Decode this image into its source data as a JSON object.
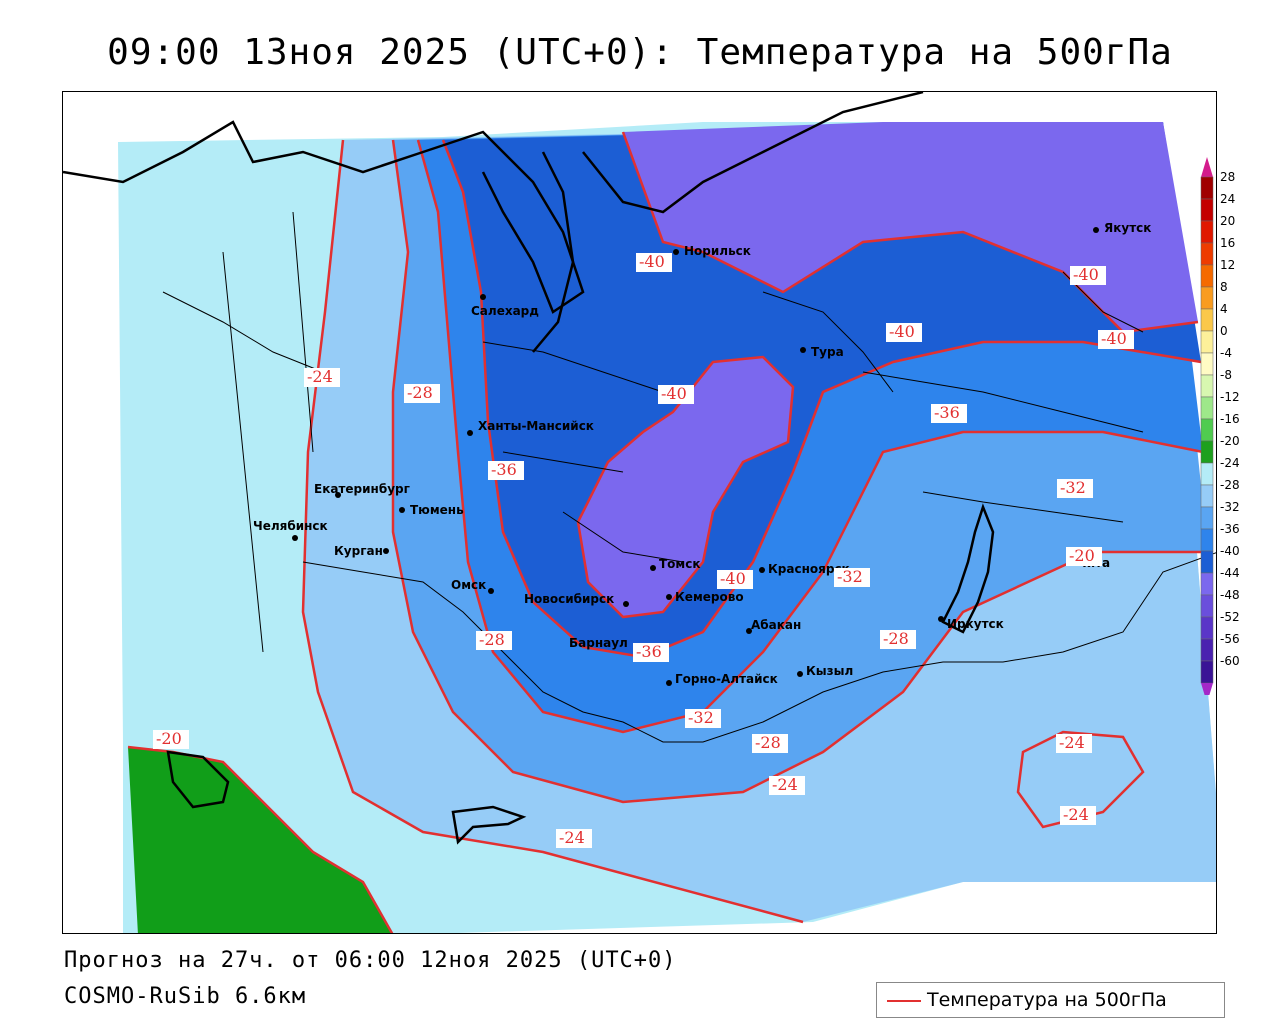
{
  "title": "09:00 13ноя 2025 (UTC+0): Температура на 500гПа",
  "footer": {
    "forecast": "Прогноз на 27ч. от 06:00 12ноя 2025 (UTC+0)",
    "model": "COSMO-RuSib 6.6км"
  },
  "legend": {
    "line_label": "Температура на 500гПа",
    "line_color": "#e23030"
  },
  "colors": {
    "band_le_minus40": "#7b68ee",
    "band_minus36_minus40": "#1c5ed4",
    "band_minus32_minus36": "#2e84ec",
    "band_minus28_minus32": "#5aa5f2",
    "band_minus24_minus28": "#96ccf7",
    "band_minus20_minus24": "#b4ecf7",
    "band_ge_minus20": "#119e19",
    "isotherm": "#e23030",
    "coast": "#000000"
  },
  "colorbar": {
    "ticks": [
      "28",
      "24",
      "20",
      "16",
      "12",
      "8",
      "4",
      "0",
      "-4",
      "-8",
      "-12",
      "-16",
      "-20",
      "-24",
      "-28",
      "-32",
      "-36",
      "-40",
      "-44",
      "-48",
      "-52",
      "-56",
      "-60"
    ],
    "colors": [
      "#a00000",
      "#c40000",
      "#e01800",
      "#ee3c00",
      "#f56a00",
      "#f99c20",
      "#fbc84a",
      "#fdf09a",
      "#fffbc4",
      "#d8f7b0",
      "#9ee88a",
      "#50cc50",
      "#1ea01e",
      "#b4ecf7",
      "#96ccf7",
      "#5aa5f2",
      "#2e84ec",
      "#1c5ed4",
      "#7b68ee",
      "#6a4fdc",
      "#5a36c8",
      "#4a22b0",
      "#3a1496"
    ],
    "top_arrow_color": "#d41c8c",
    "bottom_arrow_color": "#a428c8"
  },
  "cities": [
    {
      "name": "Норильск"
    },
    {
      "name": "Якутск"
    },
    {
      "name": "Салехард"
    },
    {
      "name": "Тура"
    },
    {
      "name": "Ханты-Мансийск"
    },
    {
      "name": "Екатеринбург"
    },
    {
      "name": "Тюмень"
    },
    {
      "name": "Челябинск"
    },
    {
      "name": "Курган"
    },
    {
      "name": "Омск"
    },
    {
      "name": "Томск"
    },
    {
      "name": "Красноярск"
    },
    {
      "name": "Новосибирск"
    },
    {
      "name": "Кемерово"
    },
    {
      "name": "Абакан"
    },
    {
      "name": "Барнаул"
    },
    {
      "name": "Иркутск"
    },
    {
      "name": "Чита"
    },
    {
      "name": "Горно-Алтайск"
    },
    {
      "name": "Кызыл"
    }
  ],
  "isotherm_labels": [
    "-40",
    "-40",
    "-40",
    "-40",
    "-40",
    "-40",
    "-36",
    "-36",
    "-36",
    "-32",
    "-32",
    "-32",
    "-28",
    "-28",
    "-28",
    "-28",
    "-24",
    "-24",
    "-24",
    "-24",
    "-24",
    "-20",
    "-20"
  ]
}
